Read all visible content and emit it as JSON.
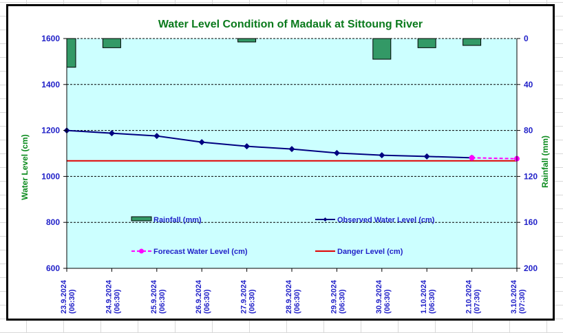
{
  "chart_data": {
    "type": "line",
    "title": "Water Level Condition of Madauk at Sittoung River",
    "ylabel": "Water Level (cm)",
    "y2label": "Rainfall (mm)",
    "ylim": [
      600,
      1600
    ],
    "y2lim": [
      0,
      200
    ],
    "y2_inverted": true,
    "yticks": [
      600,
      800,
      1000,
      1200,
      1400,
      1600
    ],
    "y2ticks": [
      0,
      40,
      80,
      120,
      160,
      200
    ],
    "grid": true,
    "categories": [
      [
        "23.9.2024",
        "(06:30)"
      ],
      [
        "24.9.2024",
        "(06:30)"
      ],
      [
        "25.9.2024",
        "(06:30)"
      ],
      [
        "26.9.2024",
        "(06:30)"
      ],
      [
        "27.9.2024",
        "(06:30)"
      ],
      [
        "28.9.2024",
        "(06:30)"
      ],
      [
        "29.9.2024",
        "(06:30)"
      ],
      [
        "30.9.2024",
        "(06:30)"
      ],
      [
        "1.10.2024",
        "(06:30)"
      ],
      [
        "2.10.2024",
        "(07:30)"
      ],
      [
        "3.10.2024",
        "(07:30)"
      ]
    ],
    "series": [
      {
        "name": "Rainfall (mm)",
        "type": "bar",
        "axis": "y2",
        "color": "#339966",
        "values": [
          25,
          8,
          0,
          0,
          3,
          0,
          0,
          18,
          8,
          6,
          0
        ]
      },
      {
        "name": "Observed Water Level (cm)",
        "type": "line",
        "axis": "y",
        "color": "#000080",
        "values": [
          1200,
          1188,
          1176,
          1149,
          1131,
          1119,
          1102,
          1092,
          1087,
          1081,
          null
        ]
      },
      {
        "name": "Forecast Water Level (cm)",
        "type": "line",
        "axis": "y",
        "color": "#ff00ff",
        "dashed": true,
        "values": [
          null,
          null,
          null,
          null,
          null,
          null,
          null,
          null,
          null,
          1081,
          1077
        ]
      },
      {
        "name": "Danger Level (cm)",
        "type": "line",
        "axis": "y",
        "color": "#e00000",
        "values": [
          1068,
          1068,
          1068,
          1068,
          1068,
          1068,
          1068,
          1068,
          1068,
          1068,
          1068
        ]
      }
    ],
    "legend": "inside-bottom",
    "colors": {
      "plot_bg": "#ccffff",
      "title": "#0a7a1c",
      "tick_labels": "#1f1fc8"
    }
  }
}
